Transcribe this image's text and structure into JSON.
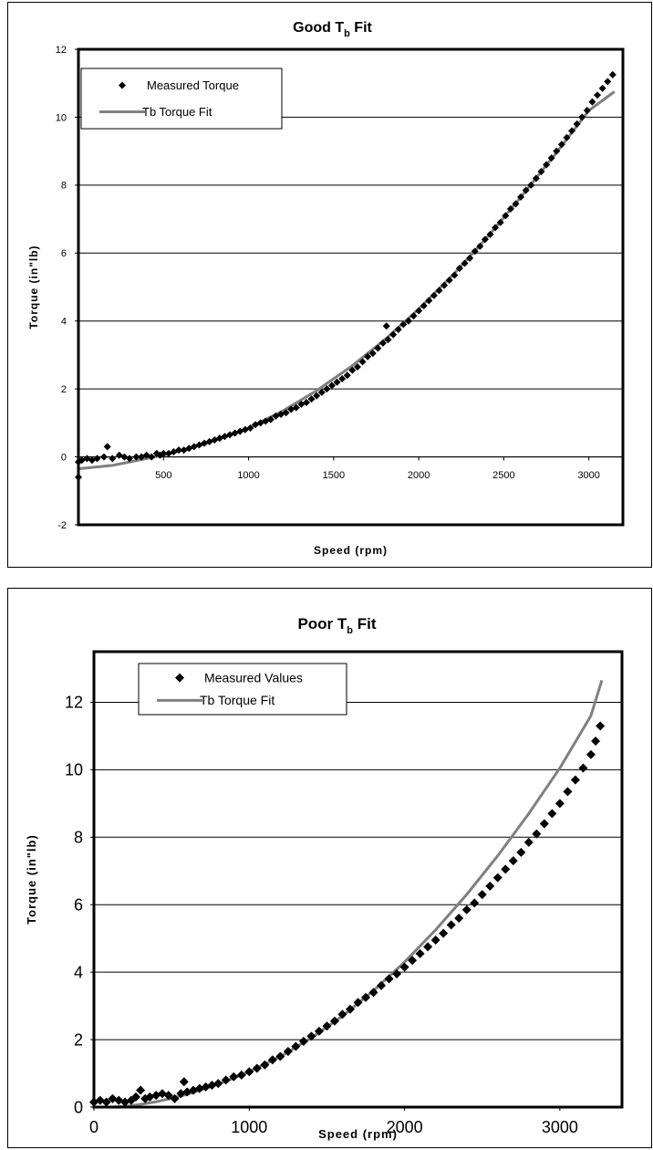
{
  "chart_data": [
    {
      "type": "scatter",
      "title": "Good T",
      "title_sub": "b",
      "title_suffix": " Fit",
      "xlabel": "Speed (rpm)",
      "ylabel": "Torque (in\"lb)",
      "xlim": [
        0,
        3200
      ],
      "ylim": [
        -2,
        12
      ],
      "xticks": [
        500,
        1000,
        1500,
        2000,
        2500,
        3000
      ],
      "yticks": [
        -2,
        0,
        2,
        4,
        6,
        8,
        10,
        12
      ],
      "grid": "horizontal",
      "legend_position": "top-left",
      "series": [
        {
          "name": "Measured Torque",
          "marker": "diamond",
          "color": "#000000",
          "x": [
            0,
            0,
            20,
            50,
            80,
            110,
            150,
            170,
            200,
            240,
            270,
            300,
            340,
            370,
            400,
            430,
            460,
            480,
            500,
            530,
            560,
            590,
            620,
            650,
            680,
            710,
            740,
            770,
            800,
            830,
            860,
            890,
            920,
            950,
            980,
            1010,
            1040,
            1070,
            1100,
            1130,
            1160,
            1190,
            1220,
            1250,
            1280,
            1310,
            1340,
            1370,
            1400,
            1430,
            1460,
            1490,
            1520,
            1550,
            1580,
            1610,
            1640,
            1670,
            1700,
            1730,
            1760,
            1790,
            1810,
            1820,
            1850,
            1880,
            1910,
            1940,
            1970,
            2000,
            2030,
            2060,
            2090,
            2120,
            2150,
            2180,
            2210,
            2240,
            2270,
            2300,
            2330,
            2360,
            2390,
            2420,
            2450,
            2480,
            2510,
            2540,
            2570,
            2600,
            2630,
            2660,
            2690,
            2720,
            2750,
            2780,
            2810,
            2840,
            2870,
            2900,
            2930,
            2960,
            2990,
            3020,
            3050,
            3080,
            3110,
            3140
          ],
          "y": [
            -0.6,
            -0.15,
            -0.1,
            -0.05,
            -0.1,
            -0.05,
            0.0,
            0.3,
            -0.05,
            0.05,
            0.0,
            -0.05,
            0.0,
            0.0,
            0.05,
            0.0,
            0.1,
            0.05,
            0.1,
            0.1,
            0.15,
            0.2,
            0.2,
            0.25,
            0.3,
            0.35,
            0.4,
            0.45,
            0.5,
            0.55,
            0.6,
            0.65,
            0.7,
            0.75,
            0.8,
            0.85,
            0.95,
            1.0,
            1.05,
            1.1,
            1.2,
            1.25,
            1.3,
            1.4,
            1.45,
            1.55,
            1.6,
            1.7,
            1.8,
            1.9,
            2.0,
            2.1,
            2.2,
            2.3,
            2.4,
            2.55,
            2.65,
            2.8,
            2.95,
            3.05,
            3.2,
            3.35,
            3.85,
            3.45,
            3.6,
            3.75,
            3.9,
            4.0,
            4.15,
            4.3,
            4.45,
            4.6,
            4.75,
            4.9,
            5.05,
            5.2,
            5.35,
            5.55,
            5.7,
            5.85,
            6.05,
            6.2,
            6.4,
            6.55,
            6.75,
            6.9,
            7.1,
            7.3,
            7.45,
            7.65,
            7.85,
            8.0,
            8.2,
            8.4,
            8.6,
            8.8,
            9.0,
            9.2,
            9.4,
            9.6,
            9.8,
            10.0,
            10.2,
            10.45,
            10.65,
            10.85,
            11.05,
            11.25
          ]
        },
        {
          "name": "Tb Torque Fit",
          "marker": "line",
          "color": "#808080",
          "x": [
            0,
            100,
            200,
            300,
            400,
            500,
            600,
            700,
            800,
            900,
            1000,
            1200,
            1400,
            1600,
            1800,
            2000,
            2200,
            2400,
            2600,
            2800,
            3000,
            3150
          ],
          "y": [
            -0.35,
            -0.3,
            -0.25,
            -0.15,
            -0.05,
            0.05,
            0.18,
            0.32,
            0.48,
            0.65,
            0.85,
            1.35,
            1.95,
            2.65,
            3.45,
            4.35,
            5.35,
            6.45,
            7.65,
            8.9,
            10.2,
            10.75
          ]
        }
      ]
    },
    {
      "type": "scatter",
      "title": "Poor T",
      "title_sub": "b",
      "title_suffix": " Fit",
      "xlabel": "Speed (rpm)",
      "ylabel": "Torque (in\"lb)",
      "xlim": [
        0,
        3400
      ],
      "ylim": [
        0,
        13.5
      ],
      "xticks": [
        0,
        1000,
        2000,
        3000
      ],
      "yticks": [
        0,
        2,
        4,
        6,
        8,
        10,
        12
      ],
      "grid": "horizontal",
      "legend_position": "top-left",
      "series": [
        {
          "name": "Measured Values",
          "marker": "diamond",
          "color": "#000000",
          "x": [
            0,
            40,
            80,
            120,
            160,
            200,
            240,
            270,
            300,
            330,
            360,
            400,
            440,
            480,
            520,
            560,
            580,
            600,
            640,
            680,
            720,
            760,
            800,
            850,
            900,
            950,
            1000,
            1050,
            1100,
            1150,
            1200,
            1250,
            1300,
            1350,
            1400,
            1450,
            1500,
            1550,
            1600,
            1650,
            1700,
            1750,
            1800,
            1850,
            1900,
            1950,
            2000,
            2050,
            2100,
            2150,
            2200,
            2250,
            2300,
            2350,
            2400,
            2450,
            2500,
            2550,
            2600,
            2650,
            2700,
            2750,
            2800,
            2850,
            2900,
            2950,
            3000,
            3050,
            3100,
            3150,
            3200,
            3230,
            3260
          ],
          "y": [
            0.15,
            0.2,
            0.15,
            0.25,
            0.2,
            0.15,
            0.2,
            0.3,
            0.5,
            0.25,
            0.3,
            0.35,
            0.4,
            0.35,
            0.25,
            0.4,
            0.75,
            0.45,
            0.5,
            0.55,
            0.6,
            0.65,
            0.7,
            0.8,
            0.9,
            0.95,
            1.05,
            1.15,
            1.25,
            1.4,
            1.5,
            1.65,
            1.8,
            1.95,
            2.1,
            2.25,
            2.4,
            2.55,
            2.75,
            2.9,
            3.1,
            3.25,
            3.4,
            3.6,
            3.8,
            3.95,
            4.15,
            4.35,
            4.55,
            4.75,
            4.95,
            5.15,
            5.4,
            5.6,
            5.85,
            6.05,
            6.3,
            6.55,
            6.8,
            7.05,
            7.3,
            7.55,
            7.85,
            8.1,
            8.4,
            8.7,
            9.0,
            9.35,
            9.7,
            10.05,
            10.45,
            10.85,
            11.3
          ]
        },
        {
          "name": "Tb Torque Fit",
          "marker": "line",
          "color": "#808080",
          "x": [
            0,
            100,
            200,
            300,
            400,
            500,
            600,
            800,
            1000,
            1200,
            1400,
            1600,
            1800,
            2000,
            2200,
            2400,
            2600,
            2800,
            3000,
            3200,
            3270
          ],
          "y": [
            0.0,
            0.0,
            0.02,
            0.08,
            0.16,
            0.26,
            0.38,
            0.68,
            1.05,
            1.5,
            2.05,
            2.7,
            3.45,
            4.3,
            5.25,
            6.3,
            7.45,
            8.7,
            10.05,
            11.6,
            12.65
          ]
        }
      ]
    }
  ]
}
